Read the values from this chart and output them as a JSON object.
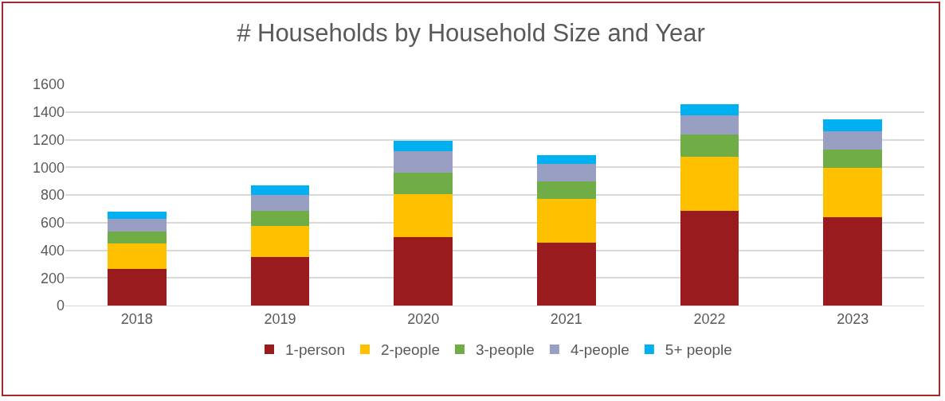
{
  "chart_data": {
    "type": "bar",
    "title": "# Households by Household Size and Year",
    "categories": [
      "2018",
      "2019",
      "2020",
      "2021",
      "2022",
      "2023"
    ],
    "stacked": true,
    "series": [
      {
        "name": "1-person",
        "color": "#991b1e",
        "values": [
          265,
          351,
          494,
          452,
          685,
          639
        ]
      },
      {
        "name": "2-people",
        "color": "#ffc000",
        "values": [
          183,
          225,
          311,
          317,
          389,
          359
        ]
      },
      {
        "name": "3-people",
        "color": "#70ad47",
        "values": [
          90,
          111,
          159,
          129,
          165,
          129
        ]
      },
      {
        "name": "4-people",
        "color": "#999fc2",
        "values": [
          87,
          112,
          150,
          126,
          137,
          136
        ]
      },
      {
        "name": "5+ people",
        "color": "#00b0f0",
        "values": [
          54,
          68,
          79,
          62,
          82,
          82
        ]
      }
    ],
    "ylim": [
      0,
      1600
    ],
    "yticks": [
      0,
      200,
      400,
      600,
      800,
      1000,
      1200,
      1400,
      1600
    ],
    "grid": "y",
    "legend": "bottom"
  }
}
